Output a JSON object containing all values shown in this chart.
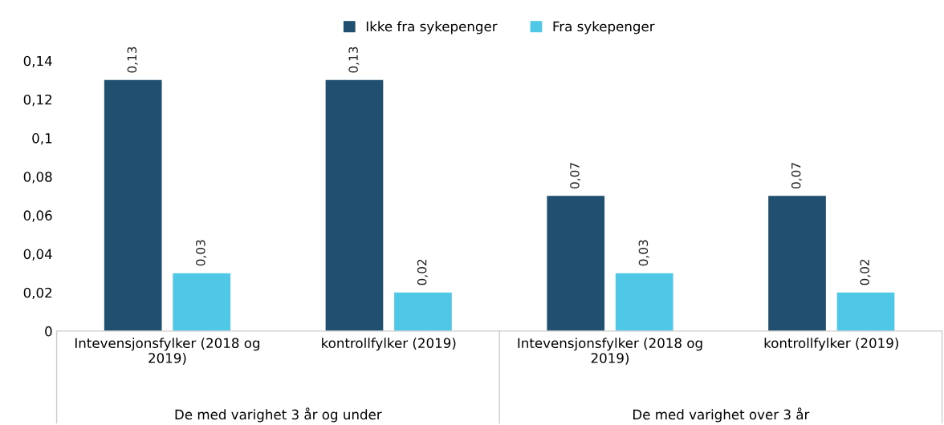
{
  "chart_data": {
    "type": "bar",
    "categories": [
      "Intevensjonsfylker (2018 og\n2019)",
      "kontrollfylker (2019)",
      "Intevensjonsfylker (2018 og\n2019)",
      "kontrollfylker (2019)"
    ],
    "series": [
      {
        "name": "Ikke fra sykepenger",
        "color": "#214f6f",
        "values": [
          0.13,
          0.13,
          0.07,
          0.07
        ],
        "value_labels": [
          "0,13",
          "0,13",
          "0,07",
          "0,07"
        ]
      },
      {
        "name": "Fra sykepenger",
        "color": "#4ec8e6",
        "values": [
          0.03,
          0.02,
          0.03,
          0.02
        ],
        "value_labels": [
          "0,03",
          "0,02",
          "0,03",
          "0,02"
        ]
      }
    ],
    "annotations": [
      "De med varighet 3 år og under",
      "De med varighet over 3 år"
    ],
    "ylim": [
      0,
      0.14
    ],
    "yticks": [
      0,
      {
        "value": 0.02,
        "label": "0,02"
      },
      {
        "value": 0.04,
        "label": "0,04"
      },
      {
        "value": 0.06,
        "label": "0,06"
      },
      {
        "value": 0.08,
        "label": "0,08"
      },
      {
        "value": 0.1,
        "label": "0,1"
      },
      {
        "value": 0.12,
        "label": "0,12"
      },
      {
        "value": 0.14,
        "label": "0,14"
      }
    ],
    "grid": false,
    "legend": "top"
  }
}
